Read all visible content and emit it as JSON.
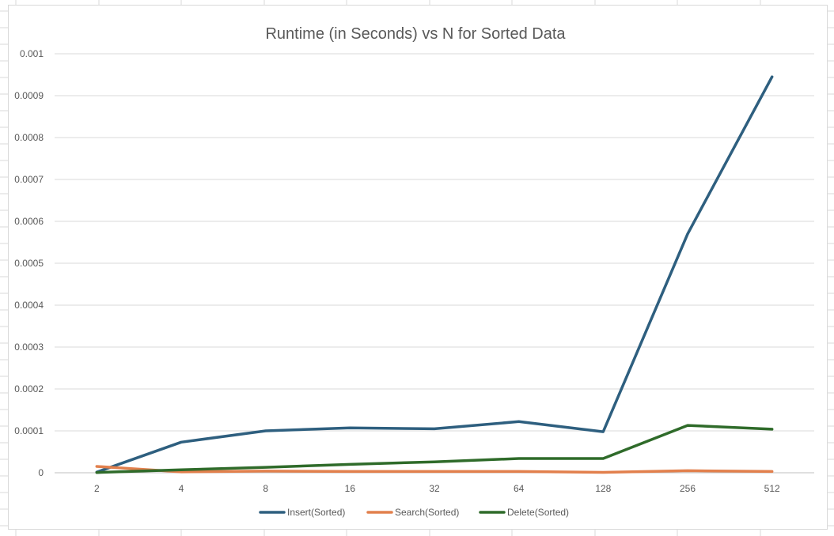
{
  "chart_data": {
    "type": "line",
    "title": "Runtime (in Seconds) vs N for Sorted Data",
    "xlabel": "",
    "ylabel": "",
    "categories": [
      "2",
      "4",
      "8",
      "16",
      "32",
      "64",
      "128",
      "256",
      "512"
    ],
    "y_ticks": [
      "0",
      "0.0001",
      "0.0002",
      "0.0003",
      "0.0004",
      "0.0005",
      "0.0006",
      "0.0007",
      "0.0008",
      "0.0009",
      "0.001"
    ],
    "ylim": [
      0,
      0.001
    ],
    "grid": true,
    "legend_position": "bottom",
    "series": [
      {
        "name": "Insert(Sorted)",
        "color": "#2e5f7f",
        "values": [
          1.5e-06,
          7.3e-05,
          0.0001,
          0.000107,
          0.000105,
          0.000122,
          9.8e-05,
          0.00057,
          0.000945
        ]
      },
      {
        "name": "Search(Sorted)",
        "color": "#e2804d",
        "values": [
          1.5e-05,
          2e-06,
          4e-06,
          3e-06,
          3e-06,
          3e-06,
          1e-06,
          5e-06,
          3e-06
        ]
      },
      {
        "name": "Delete(Sorted)",
        "color": "#2f6b2a",
        "values": [
          5e-07,
          7e-06,
          1.3e-05,
          2e-05,
          2.6e-05,
          3.4e-05,
          3.4e-05,
          0.000113,
          0.000104
        ]
      }
    ]
  }
}
